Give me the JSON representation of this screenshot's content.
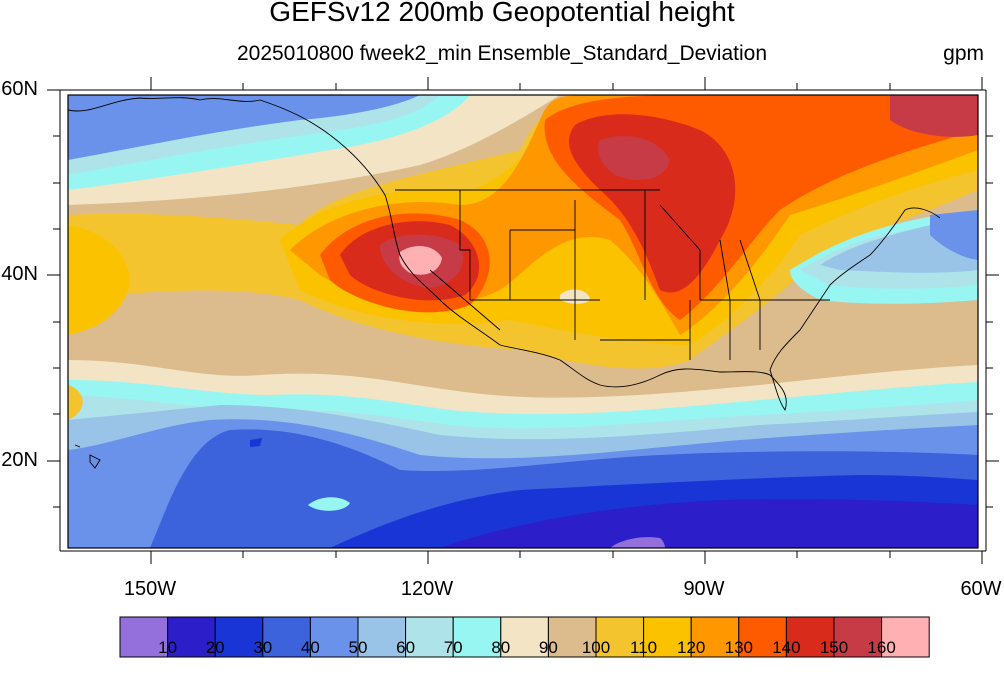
{
  "title": "GEFSv12 200mb Geopotential height",
  "subtitle": "2025010800 fweek2_min Ensemble_Standard_Deviation",
  "units": "gpm",
  "lat_labels": [
    "60N",
    "40N",
    "20N"
  ],
  "lon_labels": [
    "150W",
    "120W",
    "90W",
    "60W"
  ],
  "colorbar": {
    "colors": [
      "#9370db",
      "#2c1ec8",
      "#1a35d6",
      "#3c62dc",
      "#6a92ea",
      "#99c4e8",
      "#aee3ea",
      "#98f6f2",
      "#f2e4c4",
      "#dcbb8c",
      "#f3c42e",
      "#fbc200",
      "#fe9700",
      "#fe5b00",
      "#d92b1c",
      "#c63b46",
      "#feb0b3"
    ],
    "levels": [
      "10",
      "20",
      "30",
      "40",
      "50",
      "60",
      "70",
      "80",
      "90",
      "100",
      "110",
      "120",
      "130",
      "140",
      "150",
      "160"
    ]
  }
}
